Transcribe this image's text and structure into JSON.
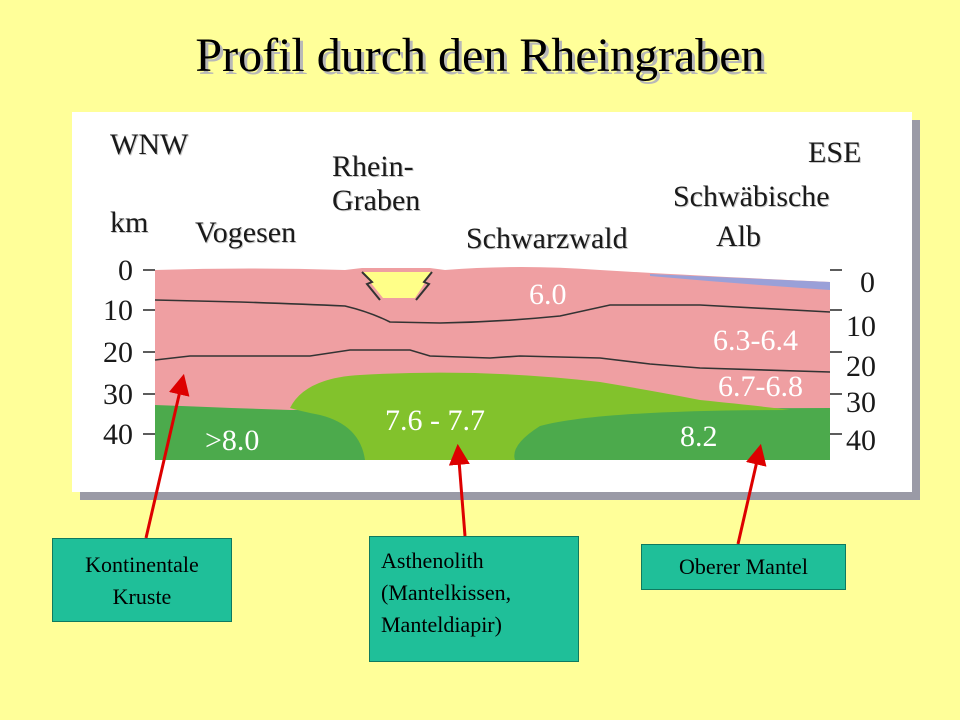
{
  "title": "Profil durch den Rheingraben",
  "directions": {
    "west": "WNW",
    "east": "ESE"
  },
  "unit": "km",
  "regions": {
    "vogesen": "Vogesen",
    "rheingraben_line1": "Rhein-",
    "rheingraben_line2": "Graben",
    "schwarzwald": "Schwarzwald",
    "alb_line1": "Schwäbische",
    "alb_line2": "Alb"
  },
  "depth_ticks": [
    "0",
    "10",
    "20",
    "30",
    "40"
  ],
  "velocities": {
    "upper_crust": "6.0",
    "middle_crust": "6.3-6.4",
    "lower_crust": "6.7-6.8",
    "mantle_west": ">8.0",
    "asthenolith": "7.6 - 7.7",
    "mantle_east": "8.2"
  },
  "callouts": {
    "kruste": {
      "line1": "Kontinentale",
      "line2": "Kruste"
    },
    "asthenolith": {
      "line1": "Asthenolith",
      "line2": "(Mantelkissen,",
      "line3": "Manteldiapir)"
    },
    "mantel": {
      "line1": "Oberer Mantel"
    }
  },
  "colors": {
    "background": "#ffff99",
    "crust": "#ef9fa2",
    "mantle": "#4caa4c",
    "asthenolith": "#82c22c",
    "sediment": "#ffff88",
    "sediment_east": "#9aa0d8",
    "callout_box": "#1fbf99",
    "arrow": "#dd0000"
  }
}
